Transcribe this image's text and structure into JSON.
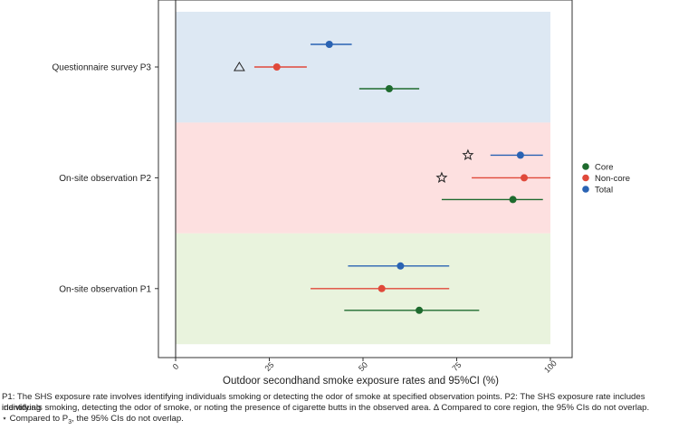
{
  "chart_data": {
    "type": "forest-plot",
    "xlabel": "Outdoor secondhand smoke exposure rates and 95%CI (%)",
    "xlim": [
      0,
      100
    ],
    "xticks": [
      0,
      25,
      50,
      75,
      100
    ],
    "legend": {
      "placement": "right",
      "entries": [
        {
          "name": "Core",
          "color": "#1e6b2e"
        },
        {
          "name": "Non-core",
          "color": "#e0493a"
        },
        {
          "name": "Total",
          "color": "#2a63b3"
        }
      ]
    },
    "groups": [
      {
        "label": "Questionnaire survey P3",
        "band_color": "#dde8f3",
        "rows": [
          {
            "series": "Total",
            "value": 41,
            "ci": [
              36,
              47
            ],
            "marker": ""
          },
          {
            "series": "Non-core",
            "value": 27,
            "ci": [
              21,
              35
            ],
            "marker": "triangle"
          },
          {
            "series": "Core",
            "value": 57,
            "ci": [
              49,
              65
            ],
            "marker": ""
          }
        ]
      },
      {
        "label": "On-site observation P2",
        "band_color": "#fde0e0",
        "rows": [
          {
            "series": "Total",
            "value": 92,
            "ci": [
              84,
              98
            ],
            "marker": "star"
          },
          {
            "series": "Non-core",
            "value": 93,
            "ci": [
              79,
              100
            ],
            "marker": "star"
          },
          {
            "series": "Core",
            "value": 90,
            "ci": [
              71,
              98
            ],
            "marker": ""
          }
        ]
      },
      {
        "label": "On-site observation P1",
        "band_color": "#e9f3dd",
        "rows": [
          {
            "series": "Total",
            "value": 60,
            "ci": [
              46,
              73
            ],
            "marker": ""
          },
          {
            "series": "Non-core",
            "value": 55,
            "ci": [
              36,
              73
            ],
            "marker": ""
          },
          {
            "series": "Core",
            "value": 65,
            "ci": [
              45,
              81
            ],
            "marker": ""
          }
        ]
      }
    ],
    "annotation_positions": {
      "triangle_x": 17,
      "star_x": [
        78,
        71
      ]
    }
  },
  "footnotes": {
    "line1": "P1: The SHS exposure rate involves identifying individuals smoking or detecting the odor of smoke at specified observation points. P2: The SHS exposure rate includes identifying",
    "line2": "individuals smoking, detecting the odor of smoke, or noting the presence of cigarette butts in the observed area. Δ Compared to core region, the 95% CIs do not overlap.",
    "line3_prefix": "⋆ Compared to P",
    "line3_sub": "3",
    "line3_suffix": ", the 95% CIs do not overlap."
  }
}
